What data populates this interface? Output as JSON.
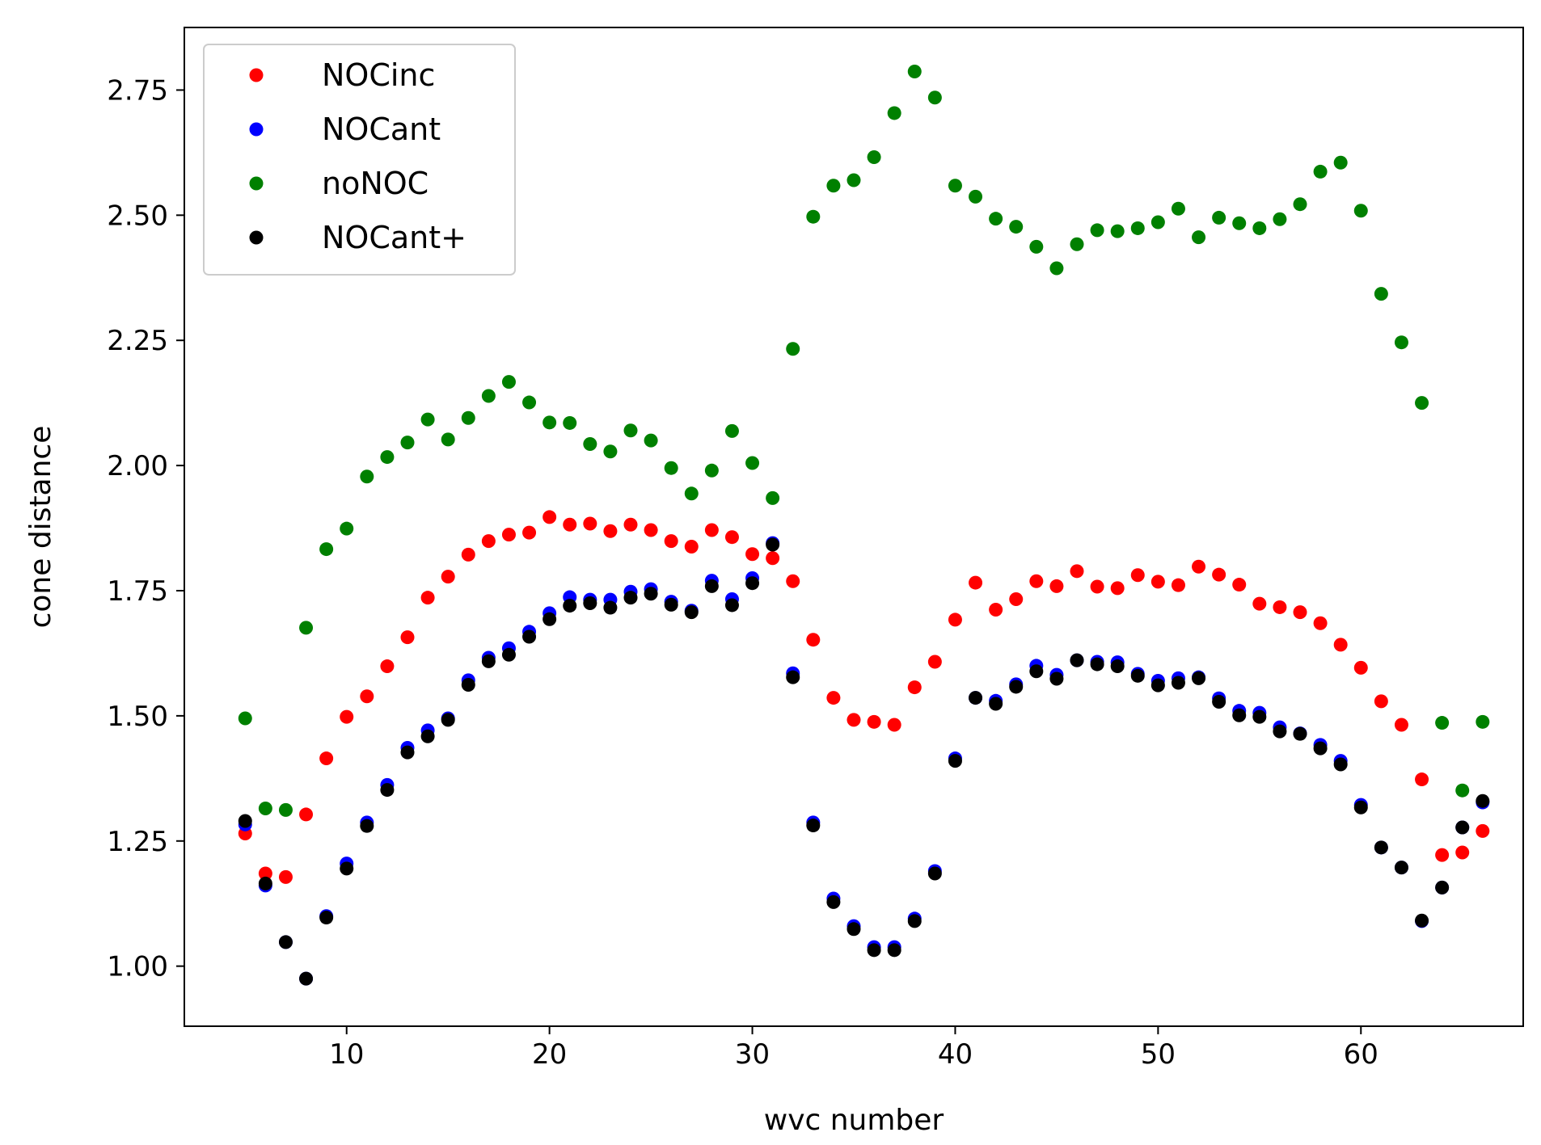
{
  "chart_data": {
    "type": "scatter",
    "title": "",
    "xlabel": "wvc number",
    "ylabel": "cone distance",
    "xlim": [
      2,
      68
    ],
    "ylim": [
      0.88,
      2.875
    ],
    "xticks": [
      10,
      20,
      30,
      40,
      50,
      60
    ],
    "xtick_labels": [
      "10",
      "20",
      "30",
      "40",
      "50",
      "60"
    ],
    "yticks": [
      1.0,
      1.25,
      1.5,
      1.75,
      2.0,
      2.25,
      2.5,
      2.75
    ],
    "ytick_labels": [
      "1.00",
      "1.25",
      "1.50",
      "1.75",
      "2.00",
      "2.25",
      "2.50",
      "2.75"
    ],
    "grid": false,
    "legend_position": "top-left",
    "x": [
      5,
      6,
      7,
      8,
      9,
      10,
      11,
      12,
      13,
      14,
      15,
      16,
      17,
      18,
      19,
      20,
      21,
      22,
      23,
      24,
      25,
      26,
      27,
      28,
      29,
      30,
      31,
      32,
      33,
      34,
      35,
      36,
      37,
      38,
      39,
      40,
      41,
      42,
      43,
      44,
      45,
      46,
      47,
      48,
      49,
      50,
      51,
      52,
      53,
      54,
      55,
      56,
      57,
      58,
      59,
      60,
      61,
      62,
      63,
      64,
      65,
      66
    ],
    "series": [
      {
        "name": "NOCinc",
        "color": "#ff0000",
        "values": [
          1.265,
          1.185,
          1.178,
          1.303,
          1.415,
          1.498,
          1.539,
          1.599,
          1.657,
          1.736,
          1.778,
          1.822,
          1.849,
          1.862,
          1.866,
          1.897,
          1.882,
          1.884,
          1.869,
          1.882,
          1.871,
          1.849,
          1.838,
          1.871,
          1.857,
          1.823,
          1.815,
          1.769,
          1.652,
          1.536,
          1.492,
          1.488,
          1.482,
          1.557,
          1.608,
          1.692,
          1.766,
          1.712,
          1.733,
          1.769,
          1.759,
          1.789,
          1.758,
          1.755,
          1.781,
          1.768,
          1.761,
          1.798,
          1.782,
          1.762,
          1.724,
          1.717,
          1.707,
          1.685,
          1.642,
          1.596,
          1.529,
          1.482,
          1.373,
          1.222,
          1.227,
          1.27
        ]
      },
      {
        "name": "NOCant",
        "color": "#0000ff",
        "values": [
          1.283,
          1.161,
          1.048,
          0.975,
          1.1,
          1.205,
          1.287,
          1.362,
          1.436,
          1.471,
          1.495,
          1.571,
          1.616,
          1.635,
          1.668,
          1.705,
          1.737,
          1.732,
          1.732,
          1.748,
          1.753,
          1.728,
          1.71,
          1.77,
          1.733,
          1.775,
          1.845,
          1.585,
          1.287,
          1.135,
          1.08,
          1.038,
          1.038,
          1.095,
          1.19,
          1.415,
          1.536,
          1.53,
          1.563,
          1.6,
          1.582,
          1.611,
          1.608,
          1.607,
          1.584,
          1.57,
          1.575,
          1.577,
          1.535,
          1.51,
          1.506,
          1.477,
          1.465,
          1.442,
          1.41,
          1.322,
          1.237,
          1.197,
          1.09,
          1.157,
          1.277,
          1.327
        ]
      },
      {
        "name": "noNOC",
        "color": "#008000",
        "values": [
          1.495,
          1.315,
          1.312,
          1.676,
          1.833,
          1.874,
          1.978,
          2.017,
          2.046,
          2.092,
          2.052,
          2.095,
          2.139,
          2.167,
          2.126,
          2.086,
          2.085,
          2.043,
          2.028,
          2.07,
          2.05,
          1.995,
          1.944,
          1.99,
          2.069,
          2.005,
          1.935,
          2.233,
          2.497,
          2.559,
          2.57,
          2.616,
          2.704,
          2.787,
          2.735,
          2.559,
          2.537,
          2.493,
          2.477,
          2.437,
          2.394,
          2.442,
          2.47,
          2.468,
          2.474,
          2.486,
          2.513,
          2.456,
          2.495,
          2.484,
          2.474,
          2.492,
          2.522,
          2.587,
          2.605,
          2.509,
          2.343,
          2.246,
          2.125,
          1.486,
          1.351,
          1.488
        ]
      },
      {
        "name": "NOCant+",
        "color": "#000000",
        "values": [
          1.29,
          1.165,
          1.048,
          0.975,
          1.097,
          1.195,
          1.28,
          1.352,
          1.427,
          1.459,
          1.492,
          1.562,
          1.609,
          1.622,
          1.658,
          1.693,
          1.72,
          1.725,
          1.716,
          1.736,
          1.744,
          1.722,
          1.707,
          1.759,
          1.721,
          1.765,
          1.842,
          1.577,
          1.281,
          1.128,
          1.074,
          1.032,
          1.032,
          1.09,
          1.185,
          1.41,
          1.536,
          1.524,
          1.558,
          1.589,
          1.574,
          1.611,
          1.603,
          1.599,
          1.58,
          1.561,
          1.566,
          1.575,
          1.528,
          1.501,
          1.498,
          1.469,
          1.464,
          1.435,
          1.403,
          1.317,
          1.237,
          1.197,
          1.091,
          1.157,
          1.277,
          1.33
        ]
      }
    ]
  }
}
